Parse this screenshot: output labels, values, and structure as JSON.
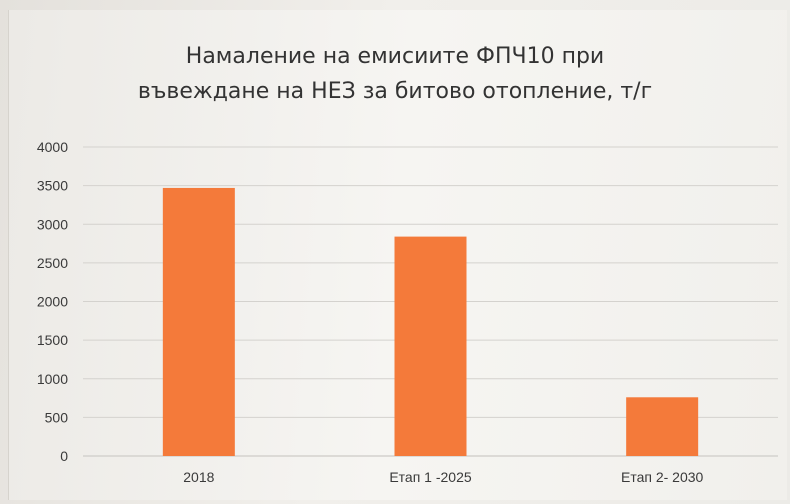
{
  "chart_data": {
    "type": "bar",
    "title_lines": [
      "Намаление на емисиите ФПЧ10  при",
      "въвеждане на НЕЗ за битово отопление, т/г"
    ],
    "categories": [
      "2018",
      "Етап 1 -2025",
      "Етап 2- 2030"
    ],
    "values": [
      3470,
      2840,
      760
    ],
    "ylim": [
      0,
      4000
    ],
    "yticks": [
      "0",
      "500",
      "1000",
      "1500",
      "2000",
      "2500",
      "3000",
      "3500",
      "4000"
    ],
    "grid": true,
    "legend": "none",
    "bar_color": "#f47a3a",
    "grid_color": "#d4d2ce"
  }
}
